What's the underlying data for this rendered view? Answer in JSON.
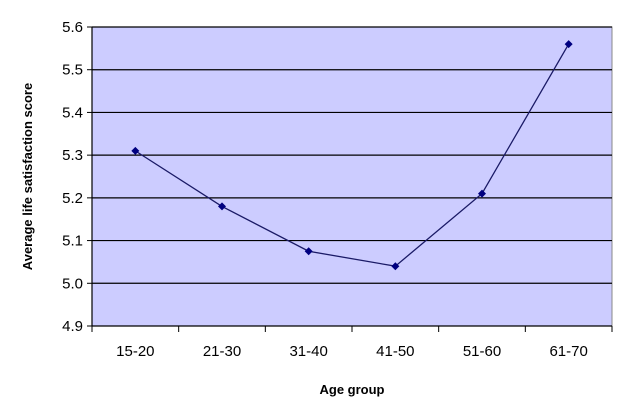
{
  "chart_data": {
    "type": "line",
    "title": "",
    "xlabel": "Age group",
    "ylabel": "Average life satisfaction score",
    "categories": [
      "15-20",
      "21-30",
      "31-40",
      "41-50",
      "51-60",
      "61-70"
    ],
    "series": [
      {
        "values": [
          5.31,
          5.18,
          5.075,
          5.04,
          5.21,
          5.56
        ]
      }
    ],
    "ylim": [
      4.9,
      5.6
    ],
    "yticks": [
      "4.9",
      "5.0",
      "5.1",
      "5.2",
      "5.3",
      "5.4",
      "5.5",
      "5.6"
    ],
    "grid": true,
    "legend": "none",
    "colors": {
      "plot_background": "#ccccff",
      "gridline": "#000000",
      "line": "#1a1a66",
      "marker": "#000080"
    }
  }
}
